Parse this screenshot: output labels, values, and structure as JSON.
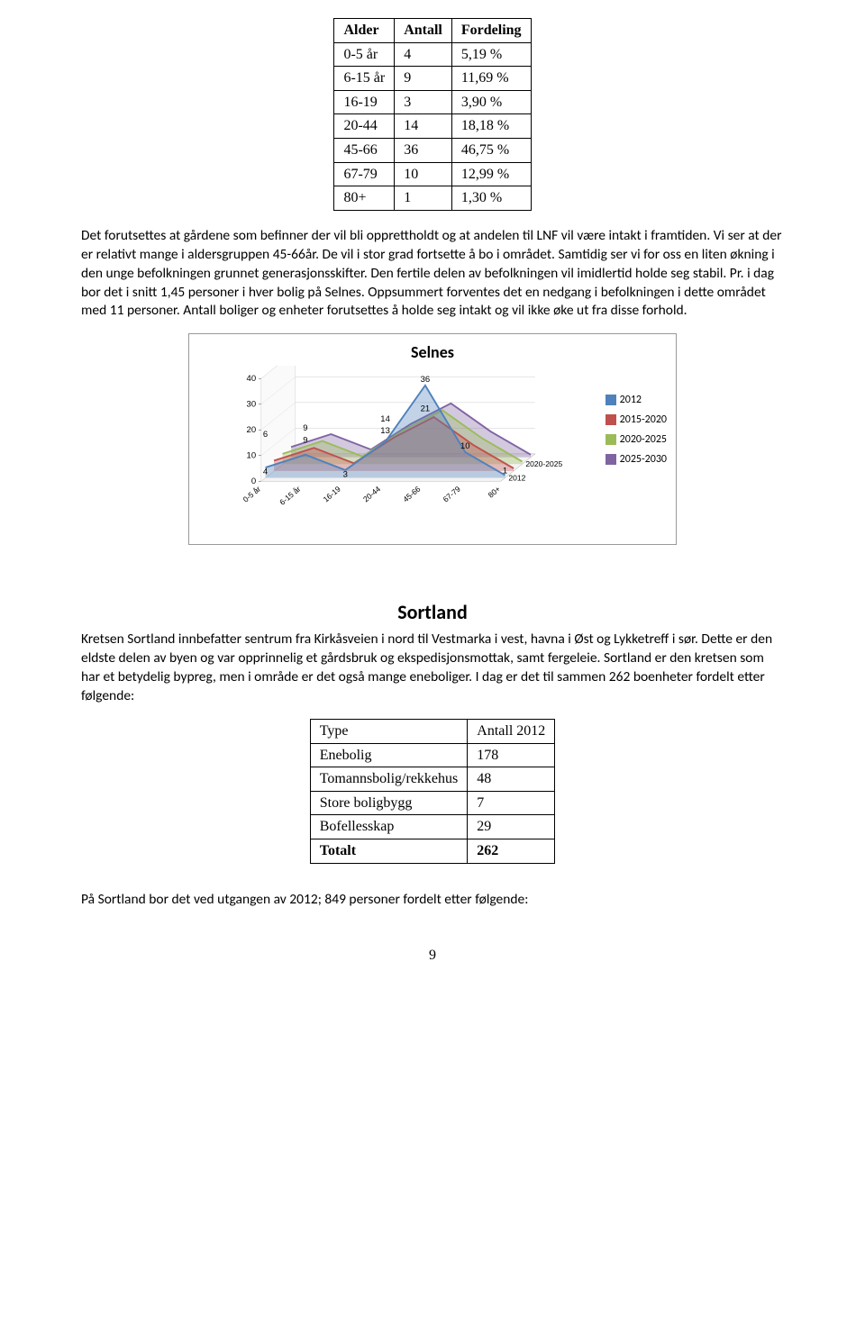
{
  "table1": {
    "headers": [
      "Alder",
      "Antall",
      "Fordeling"
    ],
    "rows": [
      [
        "0-5 år",
        "4",
        "5,19 %"
      ],
      [
        "6-15 år",
        "9",
        "11,69 %"
      ],
      [
        "16-19",
        "3",
        "3,90 %"
      ],
      [
        "20-44",
        "14",
        "18,18 %"
      ],
      [
        "45-66",
        "36",
        "46,75 %"
      ],
      [
        "67-79",
        "10",
        "12,99 %"
      ],
      [
        "80+",
        "1",
        "1,30 %"
      ]
    ]
  },
  "paragraph1": "Det forutsettes at gårdene som befinner der vil bli opprettholdt og at andelen til LNF vil være intakt i framtiden. Vi ser at der er relativt mange i aldersgruppen 45-66år. De vil i stor grad fortsette å bo i området. Samtidig ser vi for oss en liten økning i den unge befolkningen grunnet generasjonsskifter. Den fertile delen av befolkningen vil imidlertid holde seg stabil. Pr. i dag bor det i snitt 1,45 personer i hver bolig på Selnes. Oppsummert forventes det en nedgang i befolkningen i dette området med 11 personer. Antall boliger og enheter forutsettes å holde seg intakt og vil ikke øke ut fra disse forhold.",
  "chart": {
    "title": "Selnes",
    "y_ticks": [
      0,
      10,
      20,
      30,
      40
    ],
    "x_labels": [
      "0-5 år",
      "6-15 år",
      "16-19",
      "20-44",
      "45-66",
      "67-79",
      "80+"
    ],
    "depth_labels": [
      "2012",
      "2020-2025"
    ],
    "peak_labels": [
      "6",
      "9",
      "9",
      "4",
      "3",
      "14",
      "13",
      "36",
      "21",
      "10",
      "1"
    ],
    "series": [
      {
        "label": "2012",
        "color": "#4f81bd",
        "values": [
          4,
          9,
          3,
          14,
          36,
          10,
          1
        ]
      },
      {
        "label": "2015-2020",
        "color": "#c0504d",
        "values": [
          4,
          9,
          3,
          13,
          21,
          10,
          1
        ]
      },
      {
        "label": "2020-2025",
        "color": "#9bbb59",
        "values": [
          4,
          9,
          3,
          13,
          21,
          10,
          1
        ]
      },
      {
        "label": "2025-2030",
        "color": "#8064a2",
        "values": [
          4,
          9,
          3,
          13,
          21,
          10,
          1
        ]
      }
    ]
  },
  "section_heading": "Sortland",
  "paragraph2": "Kretsen Sortland innbefatter sentrum fra Kirkåsveien i nord til Vestmarka i vest, havna i Øst og Lykketreff i sør. Dette er den eldste delen av byen og var opprinnelig et gårdsbruk og ekspedisjonsmottak, samt fergeleie. Sortland er den kretsen som har et betydelig bypreg, men i område er det også mange eneboliger. I dag er det til sammen 262 boenheter fordelt etter følgende:",
  "table2": {
    "headers": [
      "Type",
      "Antall 2012"
    ],
    "rows": [
      [
        "Enebolig",
        "178"
      ],
      [
        "Tomannsbolig/rekkehus",
        "48"
      ],
      [
        "Store boligbygg",
        "7"
      ],
      [
        "Bofellesskap",
        "29"
      ]
    ],
    "total_row": [
      "Totalt",
      "262"
    ]
  },
  "paragraph3": "På Sortland bor det ved utgangen av 2012; 849 personer fordelt etter følgende:",
  "page_number": "9"
}
